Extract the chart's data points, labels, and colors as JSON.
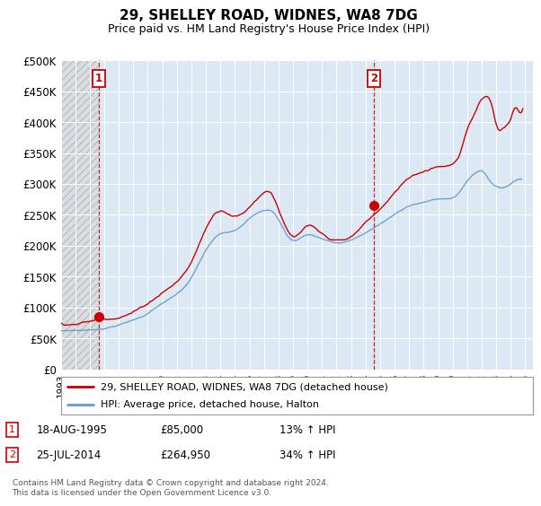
{
  "title": "29, SHELLEY ROAD, WIDNES, WA8 7DG",
  "subtitle": "Price paid vs. HM Land Registry's House Price Index (HPI)",
  "ylim": [
    0,
    500000
  ],
  "yticks": [
    0,
    50000,
    100000,
    150000,
    200000,
    250000,
    300000,
    350000,
    400000,
    450000,
    500000
  ],
  "ytick_labels": [
    "£0",
    "£50K",
    "£100K",
    "£150K",
    "£200K",
    "£250K",
    "£300K",
    "£350K",
    "£400K",
    "£450K",
    "£500K"
  ],
  "xlim_start": 1993.0,
  "xlim_end": 2025.5,
  "xticks": [
    1993,
    1994,
    1995,
    1996,
    1997,
    1998,
    1999,
    2000,
    2001,
    2002,
    2003,
    2004,
    2005,
    2006,
    2007,
    2008,
    2009,
    2010,
    2011,
    2012,
    2013,
    2014,
    2015,
    2016,
    2017,
    2018,
    2019,
    2020,
    2021,
    2022,
    2023,
    2024,
    2025
  ],
  "hpi_color": "#6699cc",
  "price_color": "#cc0000",
  "bg_color": "#dce9f5",
  "grid_color": "#ffffff",
  "marker1_x": 1995.63,
  "marker1_y": 85000,
  "marker2_x": 2014.56,
  "marker2_y": 264950,
  "legend_label1": "29, SHELLEY ROAD, WIDNES, WA8 7DG (detached house)",
  "legend_label2": "HPI: Average price, detached house, Halton",
  "note1_label": "1",
  "note1_date": "18-AUG-1995",
  "note1_price": "£85,000",
  "note1_hpi": "13% ↑ HPI",
  "note2_label": "2",
  "note2_date": "25-JUL-2014",
  "note2_price": "£264,950",
  "note2_hpi": "34% ↑ HPI",
  "footer": "Contains HM Land Registry data © Crown copyright and database right 2024.\nThis data is licensed under the Open Government Licence v3.0."
}
